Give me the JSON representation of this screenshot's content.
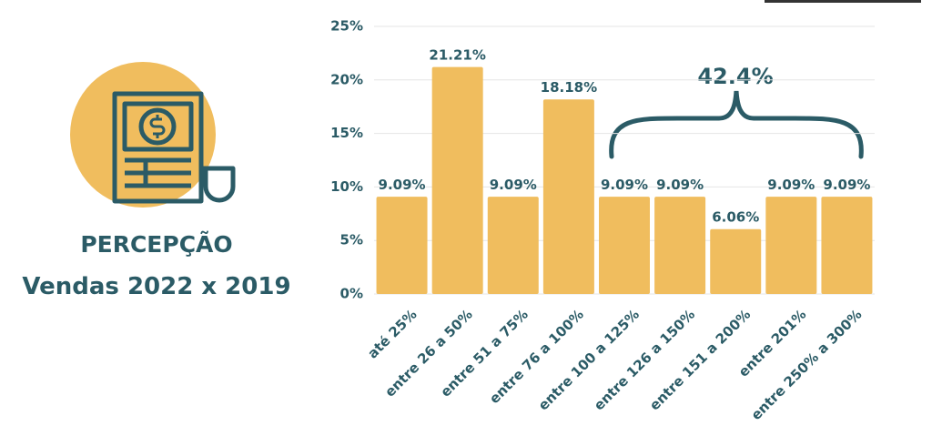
{
  "chart_data": {
    "type": "bar",
    "title": "PERCEPÇÃO",
    "subtitle": "Vendas 2022 x 2019",
    "annotation": "42.4%",
    "categories": [
      "até 25%",
      "entre 26 a 50%",
      "entre 51 a 75%",
      "entre 76 a 100%",
      "entre 100 a 125%",
      "entre 126 a 150%",
      "entre 151 a 200%",
      "entre 201%",
      "entre 250% a 300%"
    ],
    "values": [
      9.09,
      21.21,
      9.09,
      18.18,
      9.09,
      9.09,
      6.06,
      9.09,
      9.09
    ],
    "value_labels": [
      "9.09%",
      "21.21%",
      "9.09%",
      "18.18%",
      "9.09%",
      "9.09%",
      "6.06%",
      "9.09%",
      "9.09%"
    ],
    "color": "#f0bd5e",
    "ylim": [
      0,
      25
    ],
    "yticks": [
      {
        "value": 0,
        "label": "0%"
      },
      {
        "value": 5,
        "label": "5%"
      },
      {
        "value": 10,
        "label": "10%"
      },
      {
        "value": 15,
        "label": "15%"
      },
      {
        "value": 20,
        "label": "20%"
      },
      {
        "value": 25,
        "label": "25%"
      }
    ],
    "grid": true
  }
}
